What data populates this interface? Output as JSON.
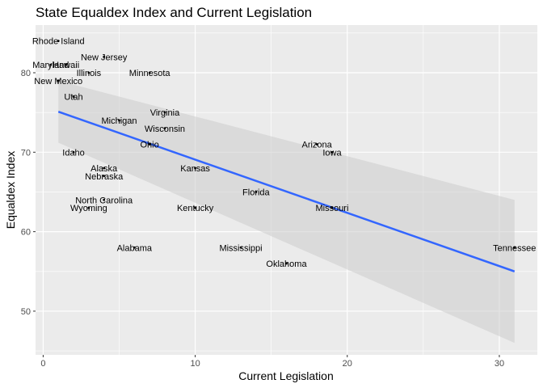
{
  "chart_data": {
    "type": "scatter",
    "title": "State Equaldex Index and Current Legislation",
    "xlabel": "Current Legislation",
    "ylabel": "Equaldex Index",
    "xlim": [
      -0.5,
      32.5
    ],
    "ylim": [
      44.5,
      86
    ],
    "x_ticks": [
      0,
      10,
      20,
      30
    ],
    "y_ticks": [
      50,
      60,
      70,
      80
    ],
    "grid": true,
    "legend": "none",
    "colors": {
      "panel": "#ebebeb",
      "grid": "#ffffff",
      "line": "#3366ff",
      "band": "#cccccc",
      "points": "#000000"
    },
    "points": [
      {
        "label": "Rhode Island",
        "x": 1,
        "y": 84
      },
      {
        "label": "Maryland",
        "x": 0.5,
        "y": 81
      },
      {
        "label": "Hawaii",
        "x": 1.5,
        "y": 81
      },
      {
        "label": "New Jersey",
        "x": 4,
        "y": 82
      },
      {
        "label": "Illinois",
        "x": 3,
        "y": 80
      },
      {
        "label": "Minnesota",
        "x": 7,
        "y": 80
      },
      {
        "label": "New Mexico",
        "x": 1,
        "y": 79
      },
      {
        "label": "Utah",
        "x": 2,
        "y": 77
      },
      {
        "label": "Virginia",
        "x": 8,
        "y": 75
      },
      {
        "label": "Michigan",
        "x": 5,
        "y": 74
      },
      {
        "label": "Wisconsin",
        "x": 8,
        "y": 73
      },
      {
        "label": "Ohio",
        "x": 7,
        "y": 71
      },
      {
        "label": "Arizona",
        "x": 18,
        "y": 71
      },
      {
        "label": "Iowa",
        "x": 19,
        "y": 70
      },
      {
        "label": "Idaho",
        "x": 2,
        "y": 70
      },
      {
        "label": "Alaska",
        "x": 4,
        "y": 68
      },
      {
        "label": "Kansas",
        "x": 10,
        "y": 68
      },
      {
        "label": "Nebraska",
        "x": 4,
        "y": 67
      },
      {
        "label": "Florida",
        "x": 14,
        "y": 65
      },
      {
        "label": "North Carolina",
        "x": 4,
        "y": 64
      },
      {
        "label": "Wyoming",
        "x": 3,
        "y": 63
      },
      {
        "label": "Kentucky",
        "x": 10,
        "y": 63
      },
      {
        "label": "Missouri",
        "x": 19,
        "y": 63
      },
      {
        "label": "Alabama",
        "x": 6,
        "y": 58
      },
      {
        "label": "Mississippi",
        "x": 13,
        "y": 58
      },
      {
        "label": "Tennessee",
        "x": 31,
        "y": 58
      },
      {
        "label": "Oklahoma",
        "x": 16,
        "y": 56
      }
    ],
    "trend": {
      "method": "linear",
      "x": [
        1,
        31
      ],
      "y": [
        75.1,
        55.0
      ],
      "ci_upper": [
        79.0,
        64.0
      ],
      "ci_lower": [
        71.2,
        46.0
      ]
    }
  }
}
